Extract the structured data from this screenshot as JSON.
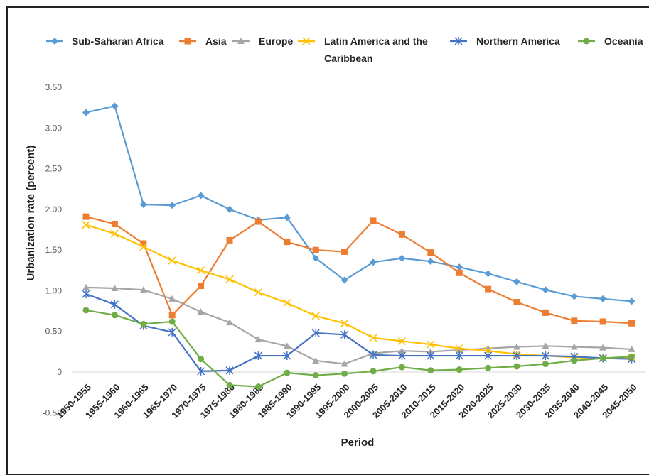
{
  "chart_data": {
    "type": "line",
    "xlabel": "Period",
    "ylabel": "Urbanization rate (percent)",
    "ylim": [
      -0.5,
      3.5
    ],
    "yticks": [
      "3.50",
      "3.00",
      "2.50",
      "2.00",
      "1.50",
      "1.00",
      "0.50",
      "0",
      "-0.50"
    ],
    "ytick_values": [
      3.5,
      3.0,
      2.5,
      2.0,
      1.5,
      1.0,
      0.5,
      0,
      -0.5
    ],
    "grid": false,
    "legend_position": "top",
    "categories": [
      "1950-1955",
      "1955-1960",
      "1960-1965",
      "1965-1970",
      "1970-1975",
      "1975-1980",
      "1980-1985",
      "1985-1990",
      "1990-1995",
      "1995-2000",
      "2000-2005",
      "2005-2010",
      "2010-2015",
      "2015-2020",
      "2020-2025",
      "2025-2030",
      "2030-2035",
      "2035-2040",
      "2040-2045",
      "2045-2050"
    ],
    "series": [
      {
        "name": "Sub-Saharan Africa",
        "color": "#5B9BD5",
        "marker": "diamond",
        "values": [
          3.19,
          3.27,
          2.06,
          2.05,
          2.17,
          2.0,
          1.87,
          1.9,
          1.4,
          1.13,
          1.35,
          1.4,
          1.36,
          1.29,
          1.21,
          1.11,
          1.01,
          0.93,
          0.9,
          0.87
        ]
      },
      {
        "name": "Asia",
        "color": "#ED7D31",
        "marker": "square",
        "values": [
          1.91,
          1.82,
          1.58,
          0.7,
          1.06,
          1.62,
          1.85,
          1.6,
          1.5,
          1.48,
          1.86,
          1.69,
          1.47,
          1.22,
          1.02,
          0.86,
          0.73,
          0.63,
          0.62,
          0.6
        ]
      },
      {
        "name": "Europe",
        "color": "#A5A5A5",
        "marker": "triangle",
        "values": [
          1.04,
          1.03,
          1.01,
          0.9,
          0.74,
          0.61,
          0.4,
          0.32,
          0.14,
          0.1,
          0.23,
          0.26,
          0.25,
          0.27,
          0.29,
          0.31,
          0.32,
          0.31,
          0.3,
          0.28
        ]
      },
      {
        "name": "Latin America and the Caribbean",
        "color": "#FFC000",
        "marker": "x",
        "values": [
          1.81,
          1.7,
          1.54,
          1.37,
          1.25,
          1.14,
          0.98,
          0.85,
          0.69,
          0.6,
          0.42,
          0.38,
          0.34,
          0.29,
          0.26,
          0.22,
          0.2,
          0.18,
          0.17,
          0.18
        ]
      },
      {
        "name": "Northern America",
        "color": "#4472C4",
        "marker": "asterisk",
        "values": [
          0.96,
          0.83,
          0.57,
          0.49,
          0.01,
          0.02,
          0.2,
          0.2,
          0.48,
          0.46,
          0.21,
          0.2,
          0.2,
          0.2,
          0.2,
          0.2,
          0.2,
          0.19,
          0.17,
          0.16
        ]
      },
      {
        "name": "Oceania",
        "color": "#70AD47",
        "marker": "circle",
        "values": [
          0.76,
          0.7,
          0.59,
          0.62,
          0.16,
          -0.16,
          -0.18,
          -0.01,
          -0.04,
          -0.02,
          0.01,
          0.06,
          0.02,
          0.03,
          0.05,
          0.07,
          0.1,
          0.14,
          0.17,
          0.19
        ]
      }
    ],
    "legend": [
      {
        "label": "Sub-Saharan Africa",
        "line2": ""
      },
      {
        "label": "Asia",
        "line2": ""
      },
      {
        "label": "Europe",
        "line2": ""
      },
      {
        "label": "Latin America and the",
        "line2": "Caribbean"
      },
      {
        "label": "Northern America",
        "line2": ""
      },
      {
        "label": "Oceania",
        "line2": ""
      }
    ]
  }
}
